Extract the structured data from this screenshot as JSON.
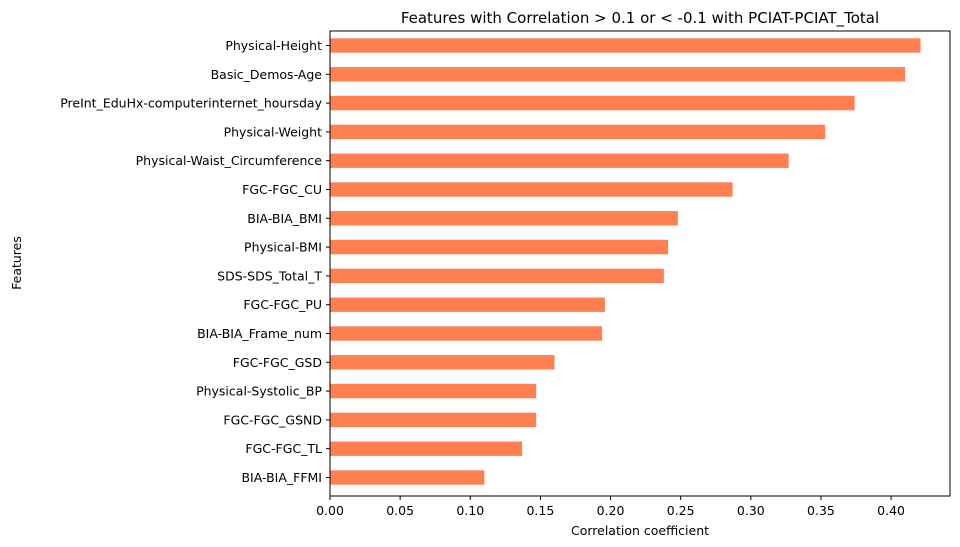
{
  "chart_data": {
    "type": "bar",
    "orientation": "horizontal",
    "title": "Features with Correlation > 0.1 or < -0.1 with PCIAT-PCIAT_Total",
    "xlabel": "Correlation coefficient",
    "ylabel": "Features",
    "xlim": [
      0,
      0.442
    ],
    "xticks": [
      "0.00",
      "0.05",
      "0.10",
      "0.15",
      "0.20",
      "0.25",
      "0.30",
      "0.35",
      "0.40"
    ],
    "bar_color": "#ff7f50",
    "grid": false,
    "categories": [
      "Physical-Height",
      "Basic_Demos-Age",
      "PreInt_EduHx-computerinternet_hoursday",
      "Physical-Weight",
      "Physical-Waist_Circumference",
      "FGC-FGC_CU",
      "BIA-BIA_BMI",
      "Physical-BMI",
      "SDS-SDS_Total_T",
      "FGC-FGC_PU",
      "BIA-BIA_Frame_num",
      "FGC-FGC_GSD",
      "Physical-Systolic_BP",
      "FGC-FGC_GSND",
      "FGC-FGC_TL",
      "BIA-BIA_FFMI"
    ],
    "values": [
      0.421,
      0.41,
      0.374,
      0.353,
      0.327,
      0.287,
      0.248,
      0.241,
      0.238,
      0.196,
      0.194,
      0.16,
      0.147,
      0.147,
      0.137,
      0.11
    ]
  }
}
